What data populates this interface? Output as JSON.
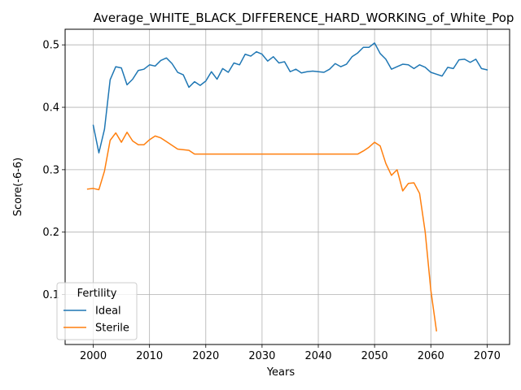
{
  "chart_data": {
    "type": "line",
    "title": "Average_WHITE_BLACK_DIFFERENCE_HARD_WORKING_of_White_Pop",
    "xlabel": "Years",
    "ylabel": "Score(-6-6)",
    "xlim": [
      1995,
      2074
    ],
    "ylim": [
      0.02,
      0.525
    ],
    "xticks": [
      2000,
      2010,
      2020,
      2030,
      2040,
      2050,
      2060,
      2070
    ],
    "yticks": [
      0.1,
      0.2,
      0.3,
      0.4,
      0.5
    ],
    "grid": true,
    "legend": {
      "title": "Fertility",
      "position": "lower-left"
    },
    "series": [
      {
        "name": "Ideal",
        "color": "#1f77b4",
        "x": [
          2000,
          2001,
          2002,
          2003,
          2004,
          2005,
          2006,
          2007,
          2008,
          2009,
          2010,
          2011,
          2012,
          2013,
          2014,
          2015,
          2016,
          2017,
          2018,
          2019,
          2020,
          2021,
          2022,
          2023,
          2024,
          2025,
          2026,
          2027,
          2028,
          2029,
          2030,
          2031,
          2032,
          2033,
          2034,
          2035,
          2036,
          2037,
          2038,
          2039,
          2040,
          2041,
          2042,
          2043,
          2044,
          2045,
          2046,
          2047,
          2048,
          2049,
          2050,
          2051,
          2052,
          2053,
          2054,
          2055,
          2056,
          2057,
          2058,
          2059,
          2060,
          2061,
          2062,
          2063,
          2064,
          2065,
          2066,
          2067,
          2068,
          2069,
          2070
        ],
        "y": [
          0.371,
          0.327,
          0.365,
          0.444,
          0.465,
          0.463,
          0.436,
          0.445,
          0.459,
          0.461,
          0.468,
          0.466,
          0.475,
          0.479,
          0.47,
          0.456,
          0.452,
          0.432,
          0.441,
          0.435,
          0.442,
          0.457,
          0.445,
          0.462,
          0.456,
          0.471,
          0.468,
          0.485,
          0.482,
          0.489,
          0.485,
          0.474,
          0.481,
          0.471,
          0.473,
          0.457,
          0.461,
          0.455,
          0.457,
          0.458,
          0.457,
          0.456,
          0.461,
          0.47,
          0.465,
          0.469,
          0.481,
          0.487,
          0.496,
          0.496,
          0.503,
          0.486,
          0.477,
          0.461,
          0.465,
          0.469,
          0.468,
          0.462,
          0.468,
          0.464,
          0.456,
          0.453,
          0.45,
          0.464,
          0.462,
          0.476,
          0.477,
          0.472,
          0.477,
          0.462,
          0.46
        ]
      },
      {
        "name": "Sterile",
        "color": "#ff7f0e",
        "x": [
          1999,
          2000,
          2001,
          2002,
          2003,
          2004,
          2005,
          2006,
          2007,
          2008,
          2009,
          2010,
          2011,
          2012,
          2013,
          2014,
          2015,
          2016,
          2017,
          2018,
          2019,
          2020,
          2021,
          2022,
          2023,
          2024,
          2025,
          2026,
          2027,
          2028,
          2029,
          2030,
          2031,
          2032,
          2033,
          2034,
          2035,
          2036,
          2037,
          2038,
          2039,
          2040,
          2041,
          2042,
          2043,
          2044,
          2045,
          2046,
          2047,
          2048,
          2049,
          2050,
          2051,
          2052,
          2053,
          2054,
          2055,
          2056,
          2057,
          2058,
          2059,
          2060,
          2061
        ],
        "y": [
          0.269,
          0.27,
          0.268,
          0.298,
          0.347,
          0.359,
          0.344,
          0.36,
          0.346,
          0.34,
          0.34,
          0.348,
          0.354,
          0.351,
          0.345,
          0.339,
          0.333,
          0.332,
          0.331,
          0.325,
          0.325,
          0.325,
          0.325,
          0.325,
          0.325,
          0.325,
          0.325,
          0.325,
          0.325,
          0.325,
          0.325,
          0.325,
          0.325,
          0.325,
          0.325,
          0.325,
          0.325,
          0.325,
          0.325,
          0.325,
          0.325,
          0.325,
          0.325,
          0.325,
          0.325,
          0.325,
          0.325,
          0.325,
          0.325,
          0.33,
          0.336,
          0.344,
          0.338,
          0.31,
          0.291,
          0.3,
          0.266,
          0.278,
          0.279,
          0.262,
          0.2,
          0.107,
          0.042
        ]
      }
    ]
  }
}
